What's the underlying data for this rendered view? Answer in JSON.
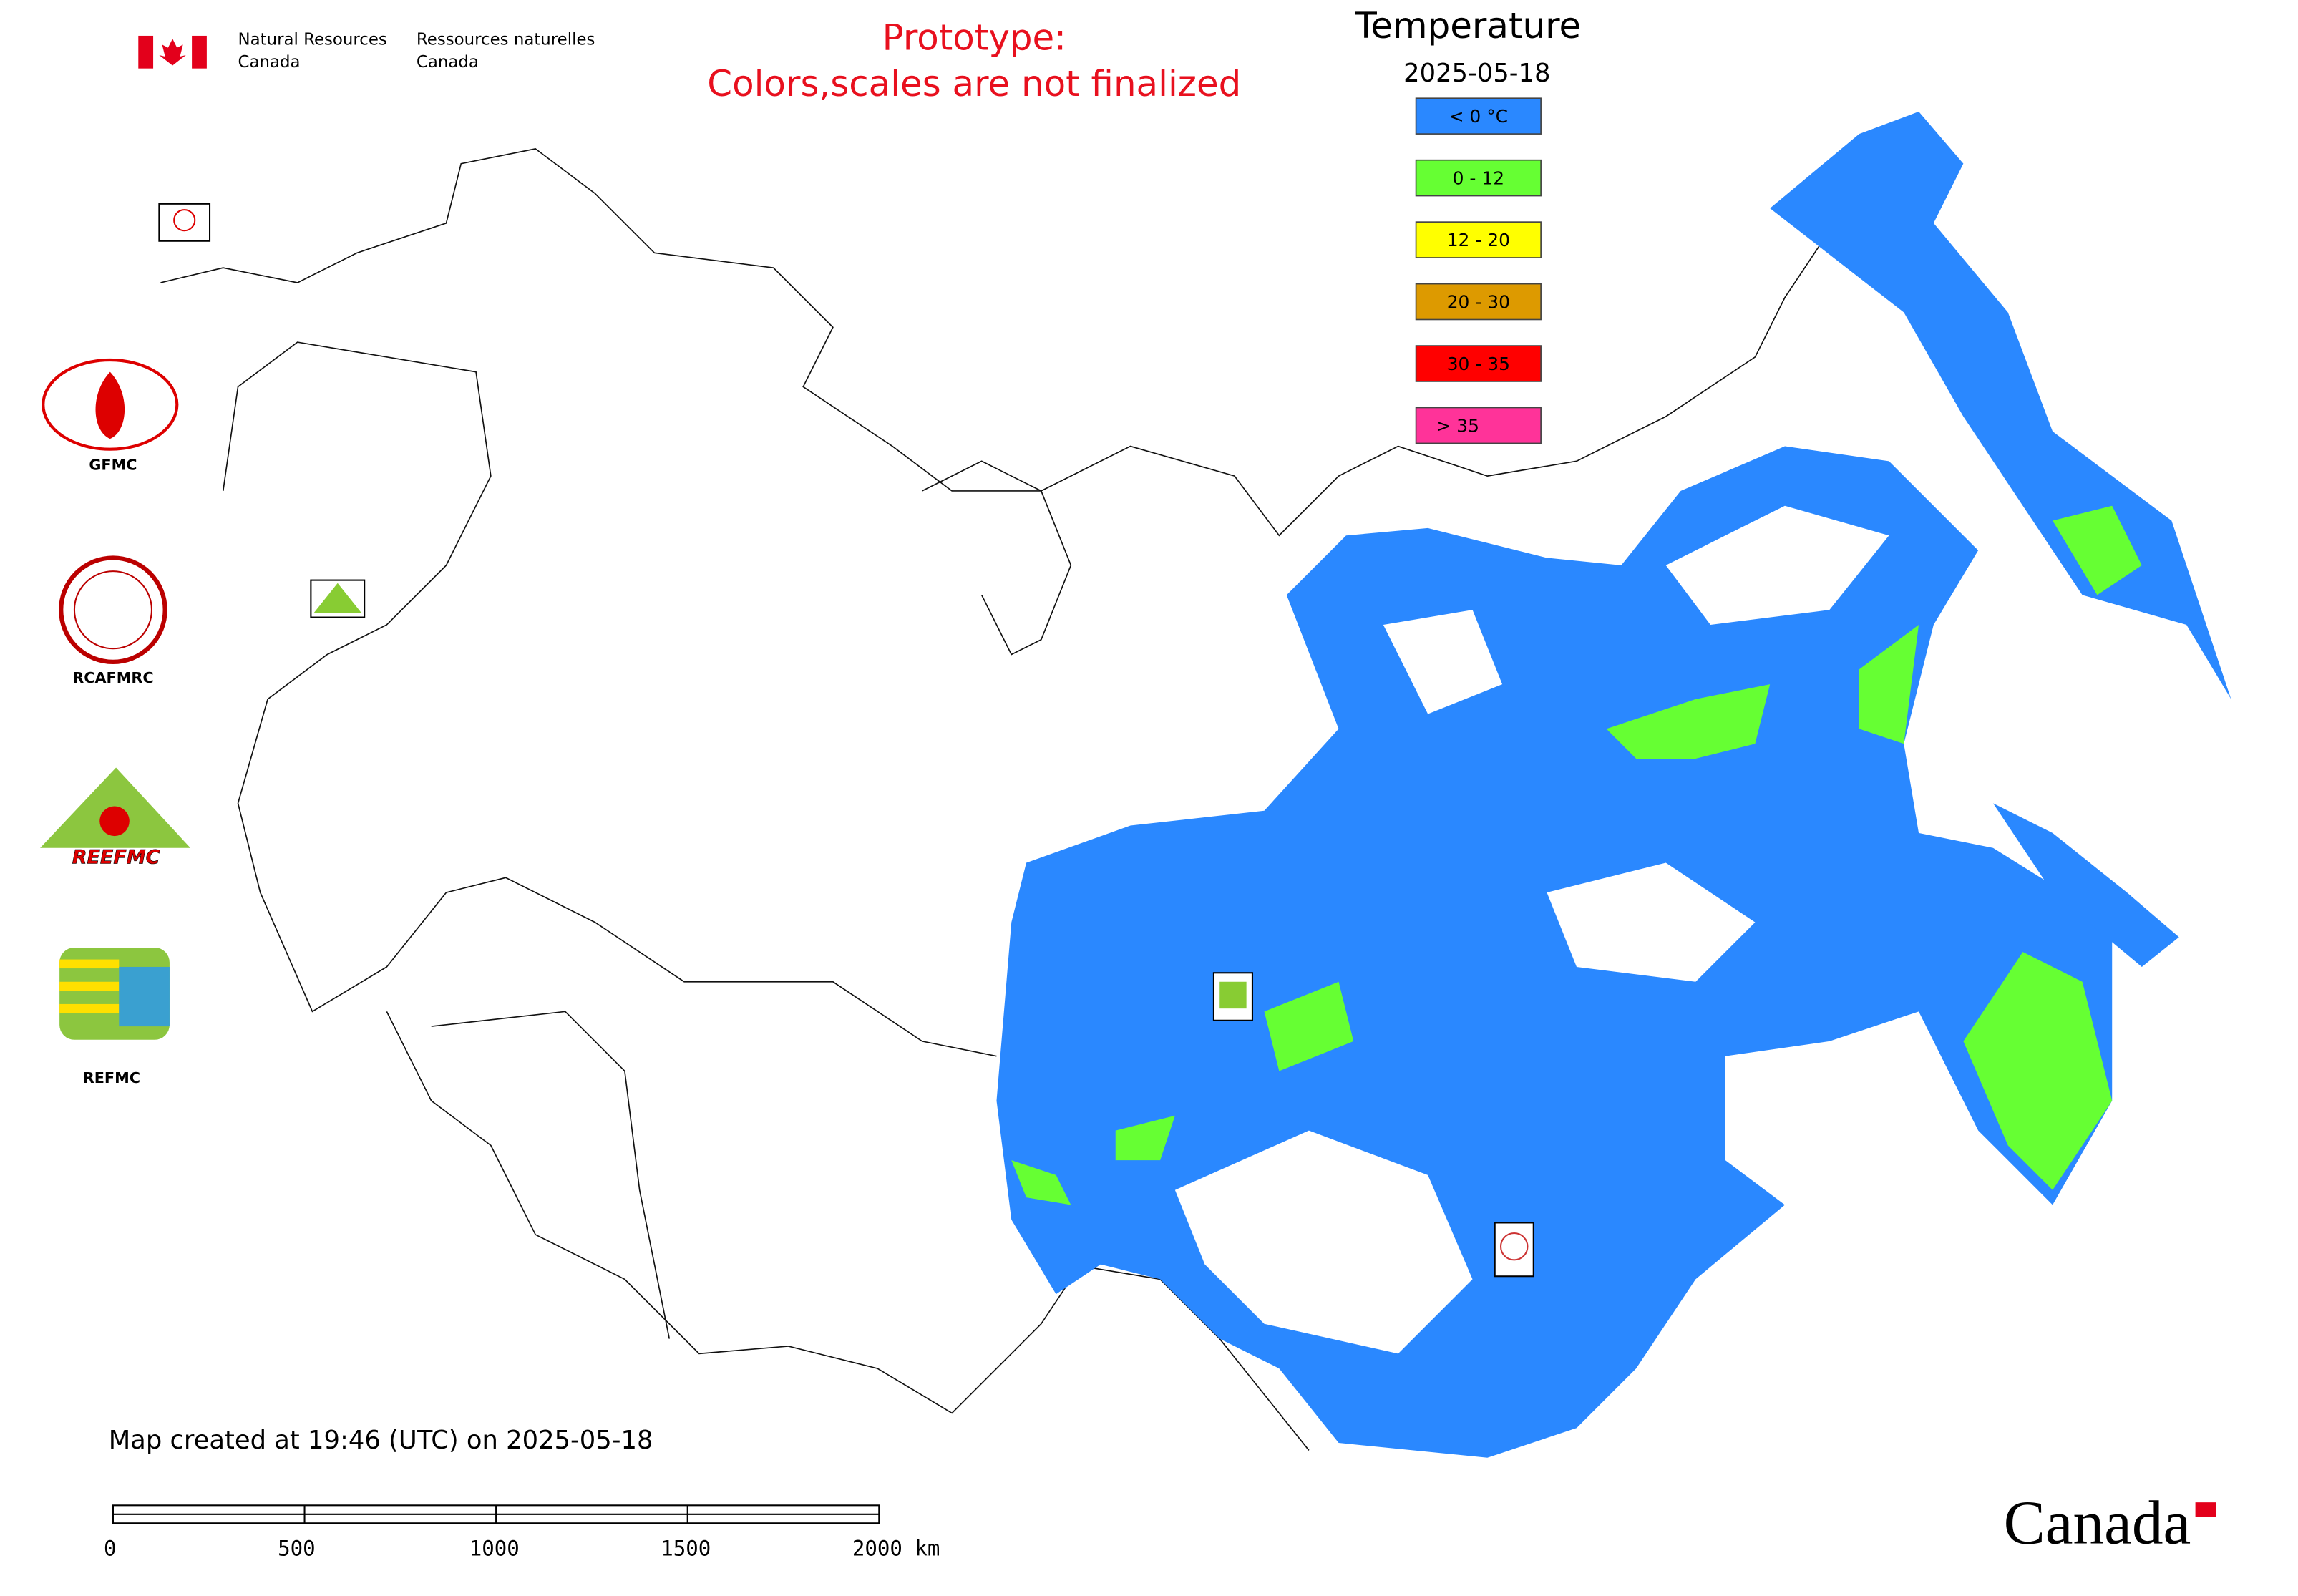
{
  "header": {
    "agency_en": [
      "Natural Resources",
      "Canada"
    ],
    "agency_fr": [
      "Ressources naturelles",
      "Canada"
    ]
  },
  "notice": [
    "Prototype:",
    "Colors,scales are not finalized"
  ],
  "legend": {
    "title": "Temperature",
    "date": "2025-05-18",
    "items": [
      {
        "label": "< 0 °C",
        "color": "#2a88ff"
      },
      {
        "label": "0 - 12",
        "color": "#66ff33"
      },
      {
        "label": "12 - 20",
        "color": "#ffff00"
      },
      {
        "label": "20 - 30",
        "color": "#dd9a00"
      },
      {
        "label": "30 - 35",
        "color": "#ff0000"
      },
      {
        "label": "> 35",
        "color": "#ff3399"
      }
    ]
  },
  "logos": [
    "GFMC",
    "RCAFMRC",
    "REEFMC",
    "REFMC"
  ],
  "created": "Map created at 19:46 (UTC) on 2025-05-18",
  "scale_bar": [
    "0",
    "500",
    "1000",
    "1500",
    "2000 km"
  ],
  "wordmark": "Canada"
}
